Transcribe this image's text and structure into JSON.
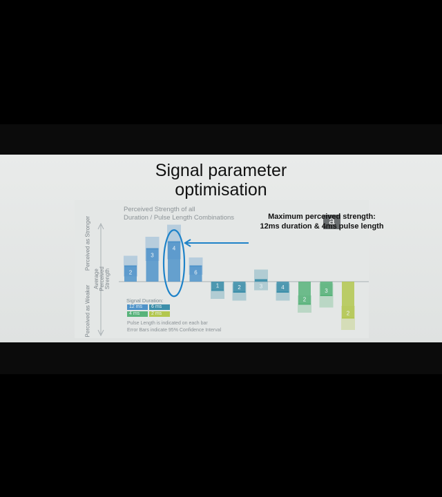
{
  "slide": {
    "title_line1": "Signal parameter",
    "title_line2": "optimisation",
    "panel_badge": "a",
    "callout_line1": "Maximum perceived strength:",
    "callout_line2": "12ms duration & 4ms pulse length"
  },
  "colors": {
    "d12": "#4f93c9",
    "d6": "#3d8faa",
    "d4": "#58b37a",
    "d2": "#b3c74f",
    "highlight": "#1d82c8",
    "axis": "#a9b0b4"
  },
  "chart_data": {
    "type": "bar",
    "title_line1": "Perceived Strength of all",
    "title_line2": "Duration / Pulse Length Combinations",
    "ylabel_top": "Perceived as Stronger",
    "ylabel_bottom": "Perceived as Weaker",
    "zero_label_line1": "Average",
    "zero_label_line2": "Perceived",
    "zero_label_line3": "Strength",
    "legend_title": "Signal Duration:",
    "series": [
      {
        "name": "12 ms",
        "color_key": "d12"
      },
      {
        "name": "6 ms",
        "color_key": "d6"
      },
      {
        "name": "4 ms",
        "color_key": "d4"
      },
      {
        "name": "2 ms",
        "color_key": "d2"
      }
    ],
    "notes": [
      "Pulse Length is indicated on each bar",
      "Error Bars indicate 95% Confidence Interval"
    ],
    "ylim": [
      -1.6,
      1.6
    ],
    "bars": [
      {
        "series": "12 ms",
        "pulse": "2",
        "value": 0.45,
        "err": 0.3
      },
      {
        "series": "12 ms",
        "pulse": "3",
        "value": 0.95,
        "err": 0.35
      },
      {
        "series": "12 ms",
        "pulse": "4",
        "value": 1.15,
        "err": 0.5
      },
      {
        "series": "12 ms",
        "pulse": "6",
        "value": 0.45,
        "err": 0.25
      },
      {
        "series": "6 ms",
        "pulse": "1",
        "value": -0.25,
        "err": 0.25
      },
      {
        "series": "6 ms",
        "pulse": "2",
        "value": -0.3,
        "err": 0.25
      },
      {
        "series": "6 ms",
        "pulse": "3",
        "value": 0.05,
        "err": 0.3
      },
      {
        "series": "6 ms",
        "pulse": "4",
        "value": -0.3,
        "err": 0.25
      },
      {
        "series": "4 ms",
        "pulse": "2",
        "value": -0.65,
        "err": 0.25
      },
      {
        "series": "4 ms",
        "pulse": "3",
        "value": -0.4,
        "err": 0.35
      },
      {
        "series": "2 ms",
        "pulse": "2",
        "value": -1.05,
        "err": 0.35
      }
    ],
    "highlight_index": 2
  }
}
